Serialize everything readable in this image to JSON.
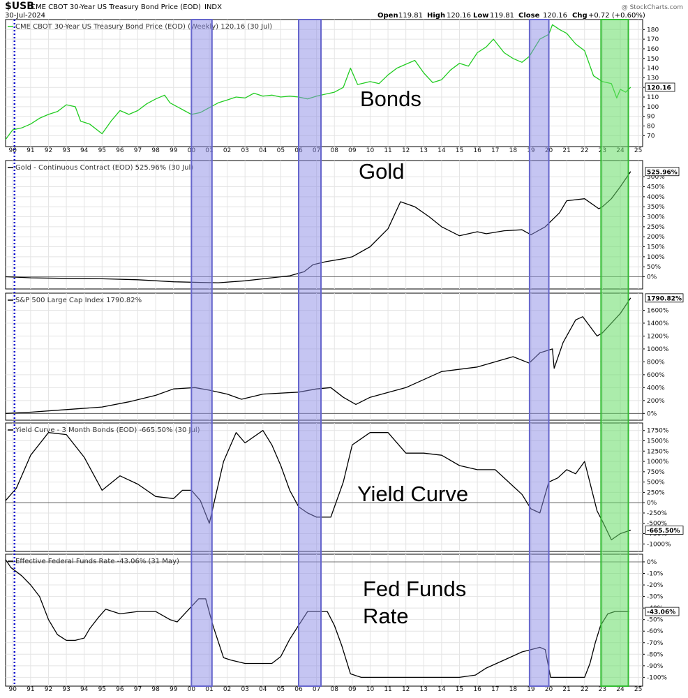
{
  "header": {
    "symbol": "$USB",
    "description": "CME CBOT 30-Year US Treasury Bond Price (EOD)",
    "exchange": "INDX",
    "date": "30-Jul-2024",
    "watermark": "@ StockCharts.com",
    "open_label": "Open",
    "open": "119.81",
    "high_label": "High",
    "high": "120.16",
    "low_label": "Low",
    "low": "119.81",
    "close_label": "Close",
    "close": "120.16",
    "chg_label": "Chg",
    "chg": "+0.72 (+0.60%)"
  },
  "annotations": {
    "bonds": "Bonds",
    "gold": "Gold",
    "yield_curve": "Yield Curve",
    "fed_funds_1": "Fed Funds",
    "fed_funds_2": "Rate"
  },
  "colors": {
    "bond_line": "#22cc22",
    "black_line": "#000000",
    "recession_shade": "#8c8ce6",
    "recession_border": "#6666cc",
    "current_shade": "#66dd66",
    "current_border": "#33bb33",
    "start_marker": "#0000cc"
  },
  "chart_data": [
    {
      "type": "line",
      "title": "CME CBOT 30-Year US Treasury Bond Price (EOD) (Weekly) 120.16 (30 Jul)",
      "x_tick_labels": [
        "90",
        "91",
        "92",
        "93",
        "94",
        "95",
        "96",
        "97",
        "98",
        "99",
        "00",
        "01",
        "02",
        "03",
        "04",
        "05",
        "06",
        "07",
        "08",
        "09",
        "10",
        "11",
        "12",
        "13",
        "14",
        "15",
        "16",
        "17",
        "18",
        "19",
        "20",
        "21",
        "22",
        "23",
        "24",
        "25"
      ],
      "y_ticks": [
        70,
        80,
        90,
        100,
        110,
        120,
        130,
        140,
        150,
        160,
        170,
        180
      ],
      "ylim": [
        63,
        186
      ],
      "y_tick_format": "",
      "last_value_label": "120.16",
      "series": [
        {
          "x": [
            1989.6,
            1990.0,
            1990.5,
            1991.0,
            1991.5,
            1992.0,
            1992.5,
            1993.0,
            1993.5,
            1993.8,
            1994.3,
            1995.0,
            1995.5,
            1996.0,
            1996.5,
            1997.0,
            1997.5,
            1998.0,
            1998.5,
            1998.8,
            1999.5,
            2000.0,
            2000.5,
            2001.0,
            2001.5,
            2002.0,
            2002.5,
            2003.0,
            2003.5,
            2004.0,
            2004.5,
            2005.0,
            2005.5,
            2006.0,
            2006.5,
            2007.0,
            2007.5,
            2008.0,
            2008.5,
            2008.9,
            2009.3,
            2010.0,
            2010.5,
            2011.0,
            2011.5,
            2012.0,
            2012.5,
            2013.0,
            2013.5,
            2014.0,
            2014.5,
            2015.0,
            2015.5,
            2016.0,
            2016.5,
            2016.9,
            2017.5,
            2018.0,
            2018.5,
            2018.9,
            2019.5,
            2020.0,
            2020.2,
            2020.6,
            2021.0,
            2021.5,
            2022.0,
            2022.5,
            2023.0,
            2023.5,
            2023.8,
            2024.0,
            2024.3,
            2024.58
          ],
          "y": [
            66,
            76,
            78,
            82,
            88,
            92,
            95,
            102,
            100,
            85,
            82,
            72,
            85,
            96,
            92,
            96,
            103,
            108,
            112,
            104,
            97,
            92,
            94,
            99,
            104,
            107,
            110,
            109,
            114,
            111,
            112,
            110,
            111,
            110,
            108,
            111,
            113,
            115,
            120,
            140,
            123,
            126,
            124,
            133,
            140,
            144,
            148,
            135,
            125,
            128,
            138,
            145,
            142,
            156,
            162,
            170,
            156,
            150,
            146,
            152,
            170,
            175,
            185,
            180,
            176,
            165,
            158,
            132,
            126,
            124,
            109,
            118,
            115,
            120.16
          ],
          "color": "#22cc22"
        }
      ]
    },
    {
      "type": "line",
      "title": "Gold - Continuous Contract (EOD) 525.96% (30 Jul)",
      "x_tick_labels": [],
      "y_ticks": [
        0,
        50,
        100,
        150,
        200,
        250,
        300,
        350,
        400,
        450,
        500
      ],
      "ylim": [
        -40,
        560
      ],
      "y_tick_format": "%",
      "last_value_label": "525.96%",
      "series": [
        {
          "x": [
            1989.6,
            1991.0,
            1993.0,
            1995.0,
            1997.0,
            1999.0,
            2000.5,
            2001.5,
            2003.0,
            2004.5,
            2005.5,
            2006.3,
            2006.8,
            2007.5,
            2008.5,
            2009.0,
            2010.0,
            2011.0,
            2011.7,
            2012.5,
            2013.3,
            2014.0,
            2015.0,
            2016.0,
            2016.5,
            2017.5,
            2018.5,
            2019.0,
            2019.8,
            2020.6,
            2021.0,
            2022.0,
            2022.8,
            2023.0,
            2023.5,
            2024.0,
            2024.58
          ],
          "y": [
            0,
            -5,
            -8,
            -10,
            -15,
            -25,
            -28,
            -30,
            -20,
            -5,
            5,
            25,
            60,
            75,
            90,
            100,
            150,
            240,
            375,
            350,
            300,
            250,
            205,
            225,
            215,
            230,
            235,
            210,
            250,
            320,
            380,
            390,
            340,
            350,
            390,
            450,
            525.96
          ],
          "color": "#000000"
        }
      ]
    },
    {
      "type": "line",
      "title": "S&P 500 Large Cap Index 1790.82%",
      "x_tick_labels": [],
      "y_ticks": [
        0,
        200,
        400,
        600,
        800,
        1000,
        1200,
        1400,
        1600
      ],
      "ylim": [
        -40,
        1800
      ],
      "y_tick_format": "%",
      "last_value_label": "1790.82%",
      "series": [
        {
          "x": [
            1989.6,
            1991.0,
            1993.0,
            1995.0,
            1996.5,
            1998.0,
            1999.0,
            2000.2,
            2001.0,
            2002.0,
            2002.8,
            2004.0,
            2006.0,
            2007.0,
            2007.8,
            2008.5,
            2009.2,
            2010.0,
            2012.0,
            2014.0,
            2016.0,
            2018.0,
            2018.9,
            2019.5,
            2020.2,
            2020.3,
            2020.8,
            2021.5,
            2021.9,
            2022.7,
            2023.0,
            2024.0,
            2024.58
          ],
          "y": [
            0,
            20,
            60,
            100,
            180,
            280,
            380,
            400,
            360,
            300,
            220,
            300,
            330,
            380,
            400,
            250,
            140,
            250,
            400,
            650,
            720,
            880,
            780,
            940,
            1000,
            700,
            1100,
            1450,
            1500,
            1200,
            1250,
            1550,
            1790.82
          ],
          "color": "#000000"
        }
      ]
    },
    {
      "type": "line",
      "title": "Yield Curve - 3 Month Bonds (EOD) -665.50% (30 Jul)",
      "x_tick_labels": [],
      "y_ticks": [
        -1000,
        -750,
        -500,
        -250,
        0,
        250,
        500,
        750,
        1000,
        1250,
        1500,
        1750
      ],
      "ylim": [
        -1080,
        1830
      ],
      "y_tick_format": "%",
      "last_value_label": "-665.50%",
      "series": [
        {
          "x": [
            1989.6,
            1990.2,
            1991.0,
            1992.0,
            1993.0,
            1994.0,
            1995.0,
            1996.0,
            1997.0,
            1998.0,
            1999.0,
            1999.5,
            2000.0,
            2000.5,
            2001.0,
            2001.8,
            2002.5,
            2003.0,
            2004.0,
            2004.5,
            2005.0,
            2005.5,
            2006.0,
            2006.5,
            2007.0,
            2007.8,
            2008.5,
            2009.0,
            2010.0,
            2011.0,
            2012.0,
            2013.0,
            2014.0,
            2015.0,
            2016.0,
            2017.0,
            2018.0,
            2018.5,
            2019.0,
            2019.5,
            2020.0,
            2020.5,
            2021.0,
            2021.5,
            2022.0,
            2022.7,
            2023.0,
            2023.5,
            2024.0,
            2024.58
          ],
          "y": [
            50,
            350,
            1150,
            1700,
            1650,
            1100,
            300,
            650,
            450,
            150,
            100,
            300,
            300,
            50,
            -500,
            1000,
            1700,
            1450,
            1750,
            1400,
            900,
            300,
            -100,
            -250,
            -350,
            -350,
            500,
            1400,
            1700,
            1700,
            1200,
            1200,
            1150,
            900,
            800,
            800,
            400,
            200,
            -150,
            -250,
            500,
            600,
            800,
            700,
            1000,
            -200,
            -450,
            -900,
            -750,
            -665.5
          ],
          "color": "#000000"
        }
      ]
    },
    {
      "type": "line",
      "title": "Effective Federal Funds Rate -43.06% (31 May)",
      "x_tick_labels": [
        "90",
        "91",
        "92",
        "93",
        "94",
        "95",
        "96",
        "97",
        "98",
        "99",
        "00",
        "01",
        "02",
        "03",
        "04",
        "05",
        "06",
        "07",
        "08",
        "09",
        "10",
        "11",
        "12",
        "13",
        "14",
        "15",
        "16",
        "17",
        "18",
        "19",
        "20",
        "21",
        "22",
        "23",
        "24",
        "25"
      ],
      "y_ticks": [
        0,
        -10,
        -20,
        -30,
        -40,
        -50,
        -60,
        -70,
        -80,
        -90,
        -100
      ],
      "ylim": [
        -104,
        3
      ],
      "y_tick_format": "%",
      "last_value_label": "-43.06%",
      "series": [
        {
          "x": [
            1989.6,
            1989.9,
            1990.5,
            1991.0,
            1991.5,
            1992.0,
            1992.5,
            1993.0,
            1993.5,
            1994.0,
            1994.3,
            1994.8,
            1995.2,
            1996.0,
            1997.0,
            1998.0,
            1998.8,
            1999.2,
            1999.8,
            2000.4,
            2000.8,
            2001.2,
            2001.8,
            2002.2,
            2003.0,
            2003.5,
            2004.0,
            2004.5,
            2005.0,
            2005.5,
            2006.0,
            2006.5,
            2007.0,
            2007.6,
            2008.0,
            2008.4,
            2008.9,
            2009.5,
            2012.0,
            2015.0,
            2015.9,
            2016.5,
            2017.5,
            2018.5,
            2019.5,
            2019.8,
            2020.1,
            2020.3,
            2021.0,
            2022.0,
            2022.3,
            2022.6,
            2022.9,
            2023.3,
            2023.7,
            2024.0,
            2024.5
          ],
          "y": [
            2,
            -5,
            -12,
            -20,
            -30,
            -50,
            -63,
            -68,
            -68,
            -66,
            -58,
            -48,
            -41,
            -45,
            -43,
            -43,
            -50,
            -52,
            -42,
            -32,
            -32,
            -55,
            -83,
            -85,
            -88,
            -88,
            -88,
            -88,
            -82,
            -67,
            -55,
            -43,
            -43,
            -43,
            -55,
            -72,
            -97,
            -100,
            -100,
            -100,
            -98,
            -92,
            -85,
            -78,
            -74,
            -76,
            -100,
            -100,
            -100,
            -100,
            -88,
            -70,
            -55,
            -45,
            -43,
            -43,
            -43
          ],
          "color": "#000000"
        }
      ]
    }
  ]
}
